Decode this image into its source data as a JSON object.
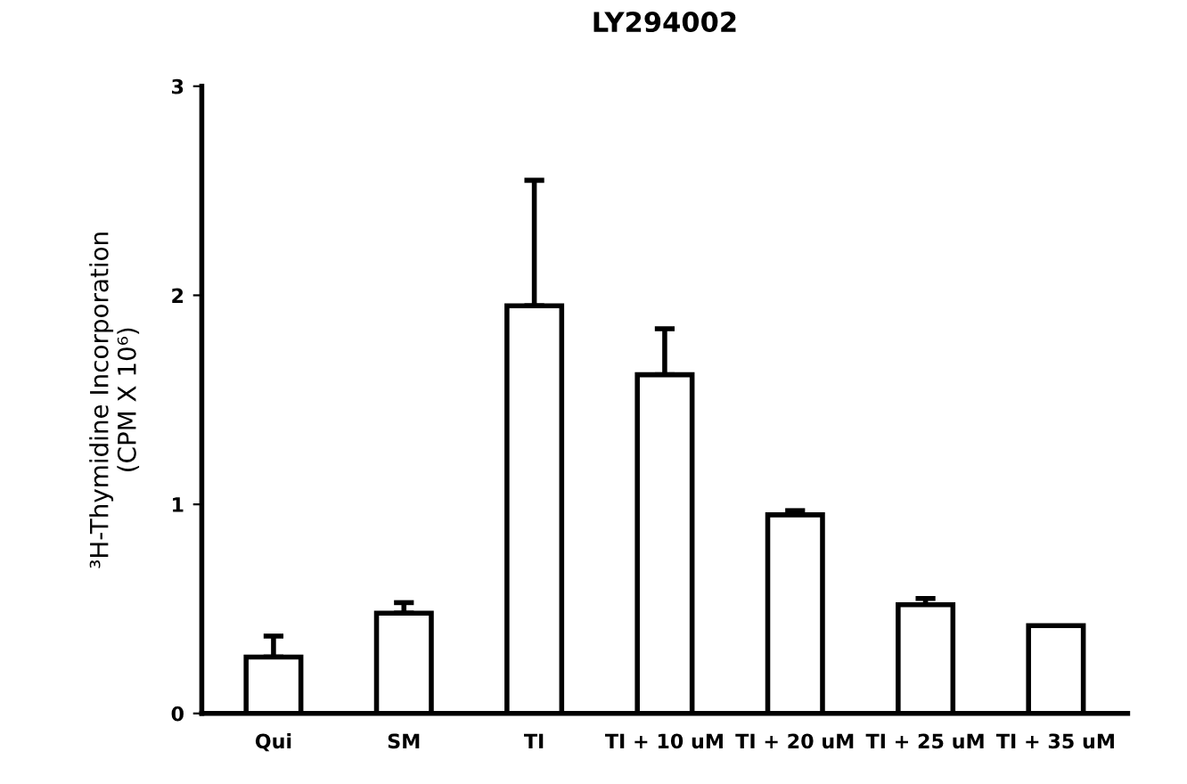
{
  "chart_data": {
    "type": "bar",
    "title": "LY294002",
    "ylabel": "³H-Thymidine Incorporation\n(CPM X 10⁶)",
    "categories": [
      "Qui",
      "SM",
      "TI",
      "TI + 10 uM",
      "TI + 20 uM",
      "TI + 25 uM",
      "TI + 35 uM"
    ],
    "values": [
      0.27,
      0.48,
      1.95,
      1.62,
      0.95,
      0.52,
      0.42
    ],
    "errors": [
      [
        0.27,
        0.37
      ],
      [
        0.48,
        0.53
      ],
      [
        1.95,
        2.55
      ],
      [
        1.62,
        1.84
      ],
      [
        0.95,
        0.97
      ],
      [
        0.52,
        0.55
      ],
      null
    ],
    "color": "#ffffff",
    "ylim": [
      0,
      3
    ],
    "yticks": [
      0,
      1,
      2,
      3
    ],
    "grid": false,
    "legend": false
  }
}
